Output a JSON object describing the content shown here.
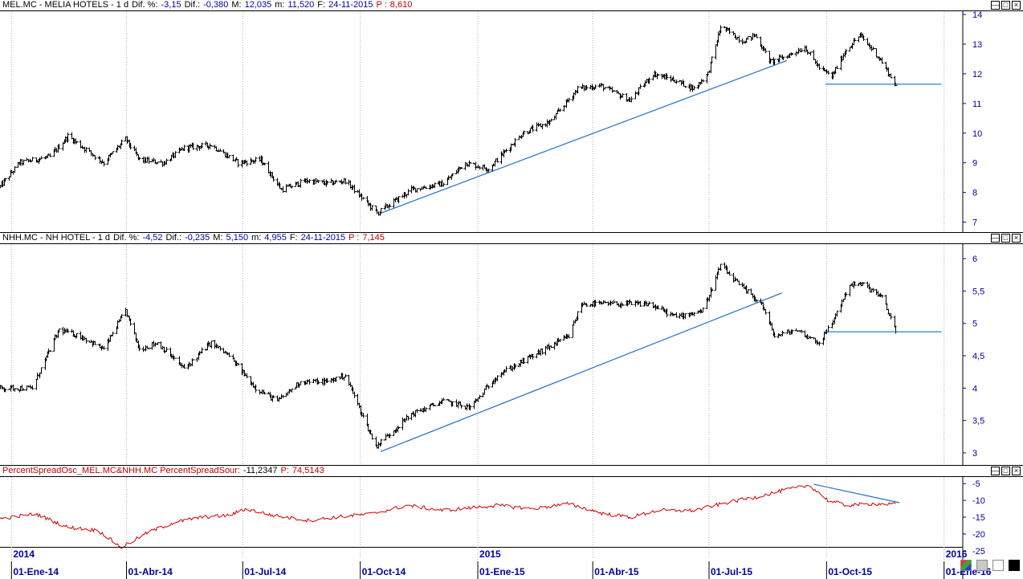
{
  "panes": [
    {
      "header": {
        "symbol": "MEL.MC - MELIA HOTELS - 1 d",
        "dif_pct_label": "Dif. %:",
        "dif_pct": "-3,15",
        "dif_label": "Dif.:",
        "dif": "-0,380",
        "max_label": "M:",
        "max": "12,035",
        "min_label": "m:",
        "min": "11,520",
        "date_label": "F:",
        "date": "24-11-2015",
        "price_label": "P :",
        "price": "8,610"
      }
    },
    {
      "header": {
        "symbol": "NHH.MC - NH HOTEL - 1 d",
        "dif_pct_label": "Dif. %:",
        "dif_pct": "-4,52",
        "dif_label": "Dif.:",
        "dif": "-0,235",
        "max_label": "M:",
        "max": "5,150",
        "min_label": "m:",
        "min": "4,955",
        "date_label": "F:",
        "date": "24-11-2015",
        "price_label": "P :",
        "price": "7,145"
      }
    },
    {
      "header": {
        "name": "PercentSpreadOsc_MEL.MC&NHH.MC PercentSpreadSour:",
        "value": "-11,2347",
        "p_label": "P:",
        "p_value": "74,5143"
      }
    }
  ],
  "colors": {
    "price": "#000000",
    "trendline": "#1f6fbf",
    "osc": "#d00000",
    "axis": "#0000a0",
    "grid": "#b0b0b0"
  },
  "chart_data": [
    {
      "type": "ohlc",
      "series_name": "MEL.MC - MELIA HOTELS",
      "ylim": [
        6.8,
        14.0
      ],
      "yticks": [
        "7",
        "8",
        "9",
        "10",
        "11",
        "12",
        "13",
        "14"
      ],
      "x_range": [
        "2013-12-23",
        "2016-01-15"
      ],
      "keypoints": [
        [
          "2013-12-23",
          8.2
        ],
        [
          "2014-01-07",
          9.0
        ],
        [
          "2014-01-31",
          9.2
        ],
        [
          "2014-02-14",
          9.9
        ],
        [
          "2014-03-14",
          9.0
        ],
        [
          "2014-03-31",
          9.8
        ],
        [
          "2014-04-11",
          9.1
        ],
        [
          "2014-04-30",
          9.0
        ],
        [
          "2014-05-16",
          9.5
        ],
        [
          "2014-06-06",
          9.6
        ],
        [
          "2014-06-27",
          9.0
        ],
        [
          "2014-07-15",
          9.1
        ],
        [
          "2014-07-31",
          8.1
        ],
        [
          "2014-08-20",
          8.4
        ],
        [
          "2014-09-05",
          8.3
        ],
        [
          "2014-09-19",
          8.4
        ],
        [
          "2014-10-14",
          7.3
        ],
        [
          "2014-11-10",
          8.1
        ],
        [
          "2014-12-05",
          8.3
        ],
        [
          "2014-12-22",
          9.0
        ],
        [
          "2015-01-09",
          8.8
        ],
        [
          "2015-02-05",
          10.0
        ],
        [
          "2015-02-27",
          10.4
        ],
        [
          "2015-03-20",
          11.5
        ],
        [
          "2015-04-07",
          11.6
        ],
        [
          "2015-04-30",
          11.1
        ],
        [
          "2015-05-18",
          12.0
        ],
        [
          "2015-06-03",
          11.8
        ],
        [
          "2015-06-19",
          11.5
        ],
        [
          "2015-06-30",
          12.0
        ],
        [
          "2015-07-10",
          13.6
        ],
        [
          "2015-07-27",
          13.1
        ],
        [
          "2015-08-06",
          13.3
        ],
        [
          "2015-08-18",
          12.4
        ],
        [
          "2015-08-31",
          12.6
        ],
        [
          "2015-09-14",
          12.9
        ],
        [
          "2015-09-25",
          12.2
        ],
        [
          "2015-10-05",
          11.9
        ],
        [
          "2015-10-16",
          12.8
        ],
        [
          "2015-10-27",
          13.3
        ],
        [
          "2015-11-10",
          12.6
        ],
        [
          "2015-11-24",
          11.6
        ]
      ],
      "trendlines": [
        {
          "from": [
            "2014-10-17",
            7.3
          ],
          "to": [
            "2015-08-31",
            12.45
          ]
        },
        {
          "from": [
            "2015-09-30",
            11.65
          ],
          "to": [
            "2015-12-30",
            11.65
          ]
        }
      ]
    },
    {
      "type": "ohlc",
      "series_name": "NHH.MC - NH HOTEL",
      "ylim": [
        2.9,
        6.1
      ],
      "yticks": [
        "3",
        "3,5",
        "4",
        "4,5",
        "5",
        "5,5",
        "6"
      ],
      "x_range": [
        "2013-12-23",
        "2016-01-15"
      ],
      "keypoints": [
        [
          "2013-12-23",
          4.0
        ],
        [
          "2014-01-17",
          4.0
        ],
        [
          "2014-02-07",
          4.9
        ],
        [
          "2014-02-24",
          4.8
        ],
        [
          "2014-03-14",
          4.6
        ],
        [
          "2014-03-31",
          5.2
        ],
        [
          "2014-04-11",
          4.6
        ],
        [
          "2014-04-25",
          4.7
        ],
        [
          "2014-05-16",
          4.3
        ],
        [
          "2014-06-06",
          4.7
        ],
        [
          "2014-06-20",
          4.5
        ],
        [
          "2014-07-11",
          4.0
        ],
        [
          "2014-07-28",
          3.8
        ],
        [
          "2014-08-15",
          4.1
        ],
        [
          "2014-09-05",
          4.1
        ],
        [
          "2014-09-19",
          4.2
        ],
        [
          "2014-10-13",
          3.1
        ],
        [
          "2014-11-10",
          3.6
        ],
        [
          "2014-12-05",
          3.8
        ],
        [
          "2014-12-26",
          3.7
        ],
        [
          "2015-01-16",
          4.2
        ],
        [
          "2015-02-13",
          4.5
        ],
        [
          "2015-03-13",
          4.8
        ],
        [
          "2015-03-23",
          5.3
        ],
        [
          "2015-04-10",
          5.3
        ],
        [
          "2015-05-15",
          5.3
        ],
        [
          "2015-06-05",
          5.1
        ],
        [
          "2015-06-26",
          5.2
        ],
        [
          "2015-07-10",
          5.9
        ],
        [
          "2015-07-24",
          5.6
        ],
        [
          "2015-08-11",
          5.3
        ],
        [
          "2015-08-21",
          4.8
        ],
        [
          "2015-09-07",
          4.9
        ],
        [
          "2015-09-25",
          4.7
        ],
        [
          "2015-10-05",
          5.0
        ],
        [
          "2015-10-19",
          5.6
        ],
        [
          "2015-10-30",
          5.6
        ],
        [
          "2015-11-13",
          5.4
        ],
        [
          "2015-11-24",
          4.9
        ]
      ],
      "trendlines": [
        {
          "from": [
            "2014-10-17",
            3.02
          ],
          "to": [
            "2015-08-27",
            5.47
          ]
        },
        {
          "from": [
            "2015-09-30",
            4.87
          ],
          "to": [
            "2015-12-30",
            4.87
          ]
        }
      ]
    },
    {
      "type": "line",
      "series_name": "PercentSpreadOsc_MEL.MC&NHH.MC",
      "ylim": [
        -26,
        -4
      ],
      "yticks": [
        "-25",
        "-20",
        "-15",
        "-10",
        "-5"
      ],
      "x_range": [
        "2013-12-23",
        "2016-01-15"
      ],
      "keypoints": [
        [
          "2013-12-23",
          -15.5
        ],
        [
          "2014-01-20",
          -14.0
        ],
        [
          "2014-02-14",
          -18.0
        ],
        [
          "2014-03-10",
          -19.0
        ],
        [
          "2014-03-28",
          -24.0
        ],
        [
          "2014-04-18",
          -19.5
        ],
        [
          "2014-05-09",
          -16.5
        ],
        [
          "2014-05-30",
          -15.0
        ],
        [
          "2014-06-20",
          -14.5
        ],
        [
          "2014-07-04",
          -12.5
        ],
        [
          "2014-07-25",
          -14.5
        ],
        [
          "2014-08-22",
          -16.0
        ],
        [
          "2014-09-12",
          -15.0
        ],
        [
          "2014-10-10",
          -14.0
        ],
        [
          "2014-11-07",
          -11.5
        ],
        [
          "2014-12-05",
          -13.0
        ],
        [
          "2015-01-16",
          -11.5
        ],
        [
          "2015-02-13",
          -12.5
        ],
        [
          "2015-03-13",
          -11.0
        ],
        [
          "2015-04-10",
          -14.0
        ],
        [
          "2015-05-01",
          -15.0
        ],
        [
          "2015-05-22",
          -13.0
        ],
        [
          "2015-06-19",
          -13.0
        ],
        [
          "2015-07-17",
          -10.5
        ],
        [
          "2015-08-07",
          -9.0
        ],
        [
          "2015-08-28",
          -7.0
        ],
        [
          "2015-09-18",
          -5.5
        ],
        [
          "2015-10-02",
          -10.0
        ],
        [
          "2015-10-16",
          -11.5
        ],
        [
          "2015-11-06",
          -11.0
        ],
        [
          "2015-11-24",
          -11.2
        ]
      ],
      "trendlines": [
        {
          "from": [
            "2015-09-21",
            -5.2
          ],
          "to": [
            "2015-11-27",
            -10.7
          ]
        }
      ]
    }
  ],
  "x_axis": {
    "year_labels": [
      {
        "date": "2014-01-01",
        "text": "2014"
      },
      {
        "date": "2015-01-01",
        "text": "2015"
      },
      {
        "date": "2016-01-01",
        "text": "2016"
      }
    ],
    "month_labels": [
      {
        "date": "2014-01-01",
        "text": "01-Ene-14"
      },
      {
        "date": "2014-04-01",
        "text": "01-Abr-14"
      },
      {
        "date": "2014-07-01",
        "text": "01-Jul-14"
      },
      {
        "date": "2014-10-01",
        "text": "01-Oct-14"
      },
      {
        "date": "2015-01-01",
        "text": "01-Ene-15"
      },
      {
        "date": "2015-04-01",
        "text": "01-Abr-15"
      },
      {
        "date": "2015-07-01",
        "text": "01-Jul-15"
      },
      {
        "date": "2015-10-01",
        "text": "01-Oct-15"
      },
      {
        "date": "2016-01-01",
        "text": "01-Ene-16"
      }
    ]
  }
}
